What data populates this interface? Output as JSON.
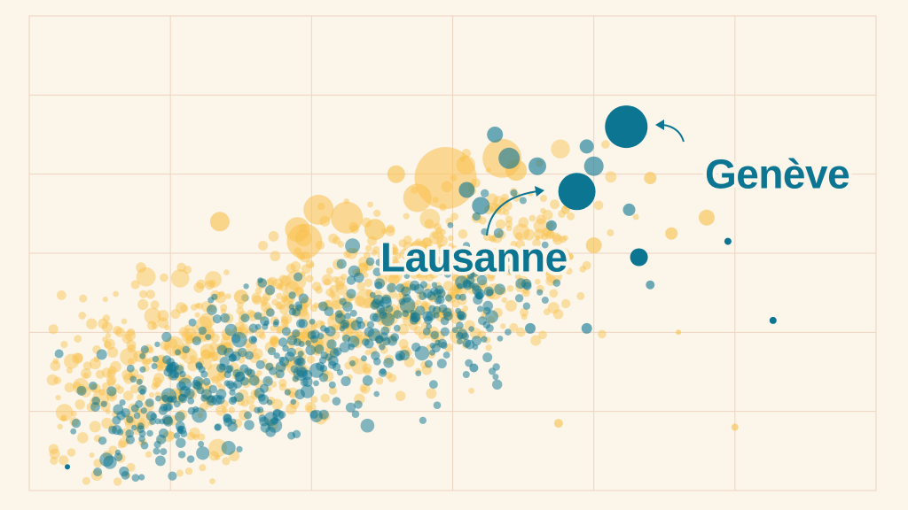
{
  "colors": {
    "background": "#fbf5ea",
    "grid": "#efd4c0",
    "series_a": "#f9c04a",
    "series_b": "#0c7592",
    "label_halo": "#fbf5ea"
  },
  "chart_data": {
    "type": "scatter",
    "title": "",
    "xlabel": "",
    "ylabel": "",
    "grid": true,
    "xlim": [
      0,
      6
    ],
    "ylim": [
      0,
      6
    ],
    "series": [
      {
        "key": "a",
        "color": "#f9c04a",
        "points": [
          {
            "x": 2.95,
            "y": 3.95,
            "r": 35
          },
          {
            "x": 3.35,
            "y": 4.2,
            "r": 22
          },
          {
            "x": 2.75,
            "y": 3.7,
            "r": 16
          },
          {
            "x": 2.25,
            "y": 3.45,
            "r": 18
          },
          {
            "x": 1.9,
            "y": 3.3,
            "r": 14
          },
          {
            "x": 1.95,
            "y": 3.15,
            "r": 20
          },
          {
            "x": 2.05,
            "y": 3.55,
            "r": 17
          },
          {
            "x": 1.35,
            "y": 3.4,
            "r": 11
          },
          {
            "x": 2.45,
            "y": 3.3,
            "r": 12
          },
          {
            "x": 2.6,
            "y": 4.0,
            "r": 10
          },
          {
            "x": 3.45,
            "y": 4.05,
            "r": 12
          },
          {
            "x": 4.0,
            "y": 3.1,
            "r": 9
          },
          {
            "x": 4.8,
            "y": 3.45,
            "r": 9
          },
          {
            "x": 4.55,
            "y": 3.25,
            "r": 7
          },
          {
            "x": 4.4,
            "y": 3.95,
            "r": 7
          },
          {
            "x": 1.5,
            "y": 2.45,
            "r": 8
          },
          {
            "x": 3.75,
            "y": 0.85,
            "r": 5
          },
          {
            "x": 5.0,
            "y": 0.8,
            "r": 4
          },
          {
            "x": 4.6,
            "y": 2.0,
            "r": 3
          },
          {
            "x": 3.8,
            "y": 3.55,
            "r": 5
          }
        ]
      },
      {
        "key": "b",
        "color": "#0c7592",
        "points": [
          {
            "x": 4.23,
            "y": 4.6,
            "r": 24
          },
          {
            "x": 3.88,
            "y": 3.78,
            "r": 21
          },
          {
            "x": 4.32,
            "y": 2.95,
            "r": 10
          },
          {
            "x": 4.95,
            "y": 3.15,
            "r": 4
          },
          {
            "x": 5.27,
            "y": 2.15,
            "r": 4
          },
          {
            "x": 0.27,
            "y": 0.3,
            "r": 3
          },
          {
            "x": 3.4,
            "y": 4.2,
            "r": 12
          },
          {
            "x": 3.3,
            "y": 4.5,
            "r": 9
          },
          {
            "x": 3.1,
            "y": 3.8,
            "r": 9
          },
          {
            "x": 3.2,
            "y": 3.6,
            "r": 10
          },
          {
            "x": 3.95,
            "y": 4.35,
            "r": 8
          },
          {
            "x": 4.0,
            "y": 4.1,
            "r": 11
          },
          {
            "x": 3.6,
            "y": 4.1,
            "r": 10
          },
          {
            "x": 3.7,
            "y": 3.35,
            "r": 6
          },
          {
            "x": 3.15,
            "y": 1.55,
            "r": 5
          },
          {
            "x": 4.4,
            "y": 2.6,
            "r": 5
          },
          {
            "x": 3.95,
            "y": 2.05,
            "r": 6
          },
          {
            "x": 3.55,
            "y": 2.05,
            "r": 6
          },
          {
            "x": 4.25,
            "y": 3.55,
            "r": 7
          }
        ]
      }
    ],
    "annotations": [
      {
        "text": "Lausanne",
        "x": 3.15,
        "y": 2.95,
        "target_series": "b",
        "target_index": 1
      },
      {
        "text": "Genève",
        "x": 5.3,
        "y": 4.0,
        "target_series": "b",
        "target_index": 0
      }
    ]
  }
}
